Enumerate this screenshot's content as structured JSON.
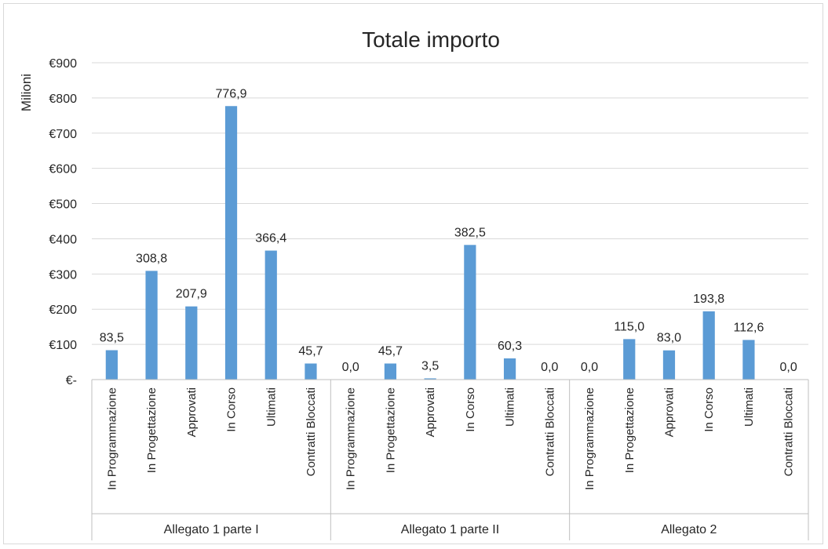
{
  "chart_data": {
    "type": "bar",
    "title": "Totale importo",
    "ylabel": "Milioni",
    "ylim": [
      0,
      900
    ],
    "yticks": [
      {
        "value": 0,
        "label": "€-"
      },
      {
        "value": 100,
        "label": "€100"
      },
      {
        "value": 200,
        "label": "€200"
      },
      {
        "value": 300,
        "label": "€300"
      },
      {
        "value": 400,
        "label": "€400"
      },
      {
        "value": 500,
        "label": "€500"
      },
      {
        "value": 600,
        "label": "€600"
      },
      {
        "value": 700,
        "label": "€700"
      },
      {
        "value": 800,
        "label": "€800"
      },
      {
        "value": 900,
        "label": "€900"
      }
    ],
    "grid": true,
    "bar_color": "#5b9bd5",
    "groups": [
      {
        "name": "Allegato 1 parte I",
        "categories": [
          "In Programmazione",
          "In Progettazione",
          "Approvati",
          "In Corso",
          "Ultimati",
          "Contratti Bloccati"
        ],
        "values": [
          83.5,
          308.8,
          207.9,
          776.9,
          366.4,
          45.7
        ],
        "labels": [
          "83,5",
          "308,8",
          "207,9",
          "776,9",
          "366,4",
          "45,7"
        ]
      },
      {
        "name": "Allegato 1 parte II",
        "categories": [
          "In Programmazione",
          "In Progettazione",
          "Approvati",
          "In Corso",
          "Ultimati",
          "Contratti Bloccati"
        ],
        "values": [
          0.0,
          45.7,
          3.5,
          382.5,
          60.3,
          0.0
        ],
        "labels": [
          "0,0",
          "45,7",
          "3,5",
          "382,5",
          "60,3",
          "0,0"
        ]
      },
      {
        "name": "Allegato 2",
        "categories": [
          "In Programmazione",
          "In Progettazione",
          "Approvati",
          "In Corso",
          "Ultimati",
          "Contratti Bloccati"
        ],
        "values": [
          0.0,
          115.0,
          83.0,
          193.8,
          112.6,
          0.0
        ],
        "labels": [
          "0,0",
          "115,0",
          "83,0",
          "193,8",
          "112,6",
          "0,0"
        ]
      }
    ]
  }
}
